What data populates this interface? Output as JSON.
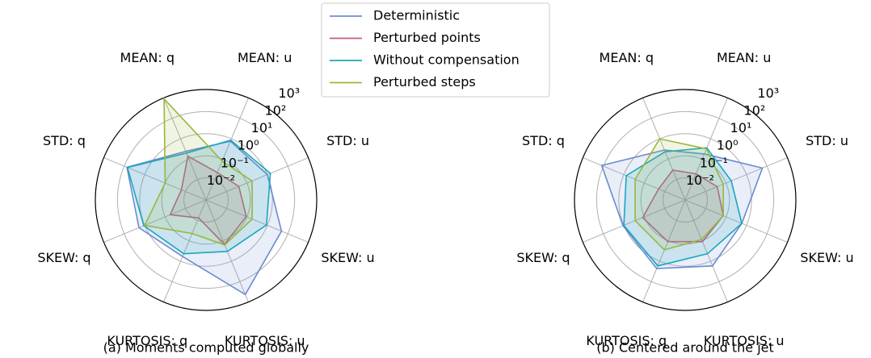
{
  "chart_data": [
    {
      "type": "radar",
      "title": "(a) Moments computed globally",
      "log": true,
      "categories": [
        "MEAN: u",
        "STD: u",
        "SKEW: u",
        "KURTOSIS: u",
        "KURTOSIS: q",
        "SKEW: q",
        "STD: q",
        "MEAN: q"
      ],
      "ylim": [
        0.01,
        1000
      ],
      "yticks": [
        {
          "value": 0.01,
          "label": "10⁻²"
        },
        {
          "value": 0.1,
          "label": "10⁻¹"
        },
        {
          "value": 1,
          "label": "10⁰"
        },
        {
          "value": 10,
          "label": "10¹"
        },
        {
          "value": 100,
          "label": "10²"
        },
        {
          "value": 1000,
          "label": "10³"
        }
      ],
      "series": [
        {
          "name": "Deterministic",
          "color": "#6b8bd0",
          "values": [
            7.6,
            10,
            49,
            430,
            5.9,
            19,
            74,
            2.4
          ]
        },
        {
          "name": "Perturbed points",
          "color": "#c45a84",
          "values": [
            0.22,
            0.4,
            0.93,
            1.5,
            0.076,
            0.56,
            0.16,
            1.4
          ]
        },
        {
          "name": "Without compensation",
          "color": "#1aa7bd",
          "values": [
            8.5,
            14,
            9,
            3.3,
            4.3,
            11,
            70,
            2
          ]
        },
        {
          "name": "Perturbed steps",
          "color": "#98b83a",
          "values": [
            0.8,
            1.8,
            1.8,
            1.6,
            0.44,
            10,
            1,
            900
          ]
        }
      ]
    },
    {
      "type": "radar",
      "title": "(b) Centered around the jet",
      "log": true,
      "categories": [
        "MEAN: u",
        "STD: u",
        "SKEW: u",
        "KURTOSIS: u",
        "KURTOSIS: q",
        "SKEW: q",
        "STD: q",
        "MEAN: q"
      ],
      "ylim": [
        0.01,
        1000
      ],
      "yticks": [
        {
          "value": 0.01,
          "label": "10⁻²"
        },
        {
          "value": 0.1,
          "label": "10⁻¹"
        },
        {
          "value": 1,
          "label": "10⁰"
        },
        {
          "value": 10,
          "label": "10¹"
        },
        {
          "value": 100,
          "label": "10²"
        },
        {
          "value": 1000,
          "label": "10³"
        }
      ],
      "series": [
        {
          "color": "#6b8bd0",
          "values": [
            1.8,
            60,
            5.9,
            17,
            23,
            11,
            120,
            2.8
          ]
        },
        {
          "color": "#c45a84",
          "values": [
            0.19,
            0.37,
            0.73,
            1.1,
            1.1,
            1.2,
            0.2,
            0.29
          ]
        },
        {
          "color": "#1aa7bd",
          "values": [
            3.6,
            1.8,
            5.9,
            4.3,
            17,
            10,
            7.6,
            2.3
          ]
        },
        {
          "color": "#98b83a",
          "values": [
            3.2,
            0.73,
            0.73,
            0.86,
            2.8,
            2.8,
            2.8,
            10
          ]
        }
      ]
    }
  ]
}
